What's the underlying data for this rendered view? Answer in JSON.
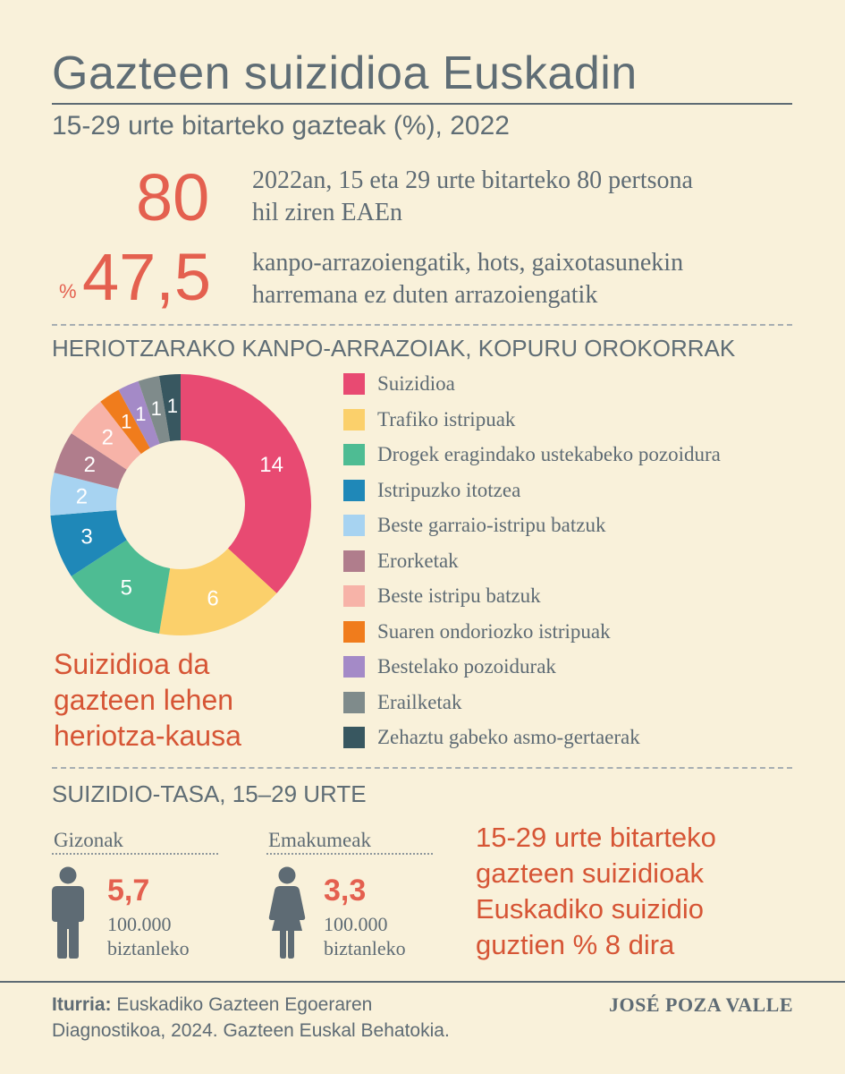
{
  "header": {
    "title": "Gazteen suizidioa Euskadin",
    "subtitle": "15-29 urte bitarteko gazteak (%), 2022"
  },
  "stats": {
    "deaths_value": "80",
    "deaths_text_1": "2022an, 15 eta 29 urte bitarteko 80 pertsona",
    "deaths_text_2": "hil ziren EAEn",
    "percent_sign": "%",
    "external_value": "47,5",
    "external_text_1": "kanpo-arrazoiengatik, hots, gaixotasunekin",
    "external_text_2": "harremana ez duten arrazoiengatik"
  },
  "causes_section": {
    "heading": "HERIOTZARAKO KANPO-ARRAZOIAK, KOPURU OROKORRAK",
    "callout_lines": [
      "Suizidioa da",
      "gazteen lehen",
      "heriotza-kausa"
    ]
  },
  "chart_data": {
    "type": "pie",
    "donut": true,
    "categories": [
      "Suizidioa",
      "Trafiko istripuak",
      "Drogek eragindako ustekabeko pozoidura",
      "Istripuzko itotzea",
      "Beste garraio-istripu batzuk",
      "Erorketak",
      "Beste istripu batzuk",
      "Suaren ondoriozko istripuak",
      "Bestelako pozoidurak",
      "Erailketak",
      "Zehaztu gabeko asmo-gertaerak"
    ],
    "values": [
      14,
      6,
      5,
      3,
      2,
      2,
      2,
      1,
      1,
      1,
      1
    ],
    "value_labels": [
      "14",
      "6",
      "5",
      "3",
      "2",
      "2",
      "2",
      "1",
      "1",
      "1",
      "1"
    ],
    "colors": [
      "#e84a72",
      "#fbd06b",
      "#4ebc93",
      "#1f88b8",
      "#a7d3f1",
      "#b07d8c",
      "#f7b3a8",
      "#f07c1c",
      "#a48ac7",
      "#7f8b8b",
      "#385760"
    ],
    "legend_position": "right",
    "start_angle": "12 o'clock, clockwise"
  },
  "suicide_rate": {
    "heading": "SUIZIDIO-TASA, 15–29 URTE",
    "men_label": "Gizonak",
    "men_value": "5,7",
    "women_label": "Emakumeak",
    "women_value": "3,3",
    "unit_1": "100.000",
    "unit_2": "biztanleko",
    "callout_lines": [
      "15-29 urte bitarteko",
      "gazteen suizidioak",
      "Euskadiko suizidio",
      "guztien % 8 dira"
    ]
  },
  "footer": {
    "source_label": "Iturria:",
    "source_text_1": " Euskadiko Gazteen Egoeraren",
    "source_text_2": "Diagnostikoa, 2024. Gazteen Euskal Behatokia.",
    "author": "JOSÉ POZA VALLE"
  }
}
